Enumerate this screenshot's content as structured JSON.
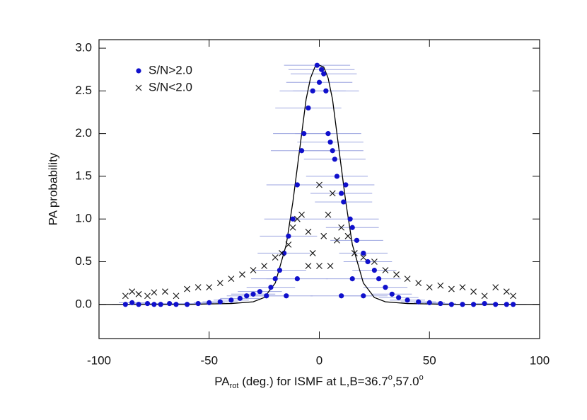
{
  "chart_data": {
    "type": "scatter",
    "y_label": "PA probability",
    "x_label_parts": [
      "PA",
      "rot",
      " (deg.) for ISMF at L,B=36.7",
      "o",
      ",57.0",
      "o"
    ],
    "xlim": [
      -100,
      100
    ],
    "ylim": [
      -0.4,
      3.1
    ],
    "xticks": [
      -100,
      -50,
      0,
      50,
      100
    ],
    "yticks": [
      {
        "value": 0,
        "label": "0.0"
      },
      {
        "value": 0.5,
        "label": "0.5"
      },
      {
        "value": 1,
        "label": "1.0"
      },
      {
        "value": 1.5,
        "label": "1.5"
      },
      {
        "value": 2,
        "label": "2.0"
      },
      {
        "value": 2.5,
        "label": "2.5"
      },
      {
        "value": 3,
        "label": "3.0"
      }
    ],
    "legend": "upper left",
    "series": [
      {
        "name": "S/N>2.0",
        "color": "#1010cc",
        "marker": "circle",
        "errcolor": "#9da6e0",
        "x": [
          -88,
          -85,
          -82,
          -78,
          -75,
          -72,
          -68,
          -65,
          -60,
          -55,
          -50,
          -45,
          -40,
          -36,
          -33,
          -30,
          -27,
          -24,
          -22,
          -20,
          -18,
          -16,
          -14,
          -12,
          -10,
          -8,
          -7,
          -5,
          -3,
          -1,
          0,
          1,
          2,
          3,
          4,
          5,
          6,
          7,
          8,
          10,
          11,
          12,
          14,
          15,
          17,
          20,
          22,
          25,
          27,
          30,
          33,
          36,
          40,
          45,
          50,
          55,
          60,
          65,
          70,
          75,
          80,
          85,
          88,
          -15,
          -10,
          10,
          20,
          15
        ],
        "values": [
          0,
          0.02,
          0,
          0.01,
          0,
          0,
          0.01,
          0,
          0,
          0.01,
          0.02,
          0.03,
          0.05,
          0.07,
          0.1,
          0.12,
          0.15,
          0.1,
          0.2,
          0.3,
          0.4,
          0.6,
          0.8,
          1.0,
          1.4,
          1.8,
          2.0,
          2.3,
          2.5,
          2.8,
          2.6,
          2.75,
          2.7,
          2.5,
          2.0,
          1.9,
          1.8,
          1.7,
          1.5,
          1.3,
          1.2,
          1.4,
          1.0,
          0.9,
          0.75,
          0.6,
          0.5,
          0.4,
          0.3,
          0.2,
          0.12,
          0.08,
          0.05,
          0.03,
          0.02,
          0.01,
          0,
          0,
          0,
          0.01,
          0,
          0,
          0,
          0.1,
          0.3,
          0.1,
          0.1,
          0.3
        ],
        "xerr": [
          6,
          6,
          6,
          6,
          6,
          6,
          6,
          6,
          7,
          7,
          7,
          8,
          8,
          9,
          9,
          10,
          10,
          10,
          11,
          11,
          12,
          12,
          13,
          13,
          14,
          14,
          14,
          15,
          15,
          15,
          15,
          15,
          15,
          15,
          15,
          15,
          14,
          14,
          14,
          14,
          13,
          13,
          13,
          12,
          12,
          11,
          11,
          10,
          10,
          10,
          9,
          9,
          8,
          8,
          7,
          7,
          7,
          6,
          6,
          6,
          6,
          6,
          6,
          12,
          14,
          14,
          11,
          12
        ]
      },
      {
        "name": "S/N<2.0",
        "color": "#111111",
        "marker": "x",
        "x": [
          -88,
          -85,
          -82,
          -78,
          -75,
          -70,
          -65,
          -60,
          -55,
          -50,
          -45,
          -40,
          -35,
          -30,
          -25,
          -20,
          -17,
          -14,
          -12,
          -10,
          -8,
          -5,
          -3,
          0,
          2,
          4,
          6,
          8,
          10,
          13,
          16,
          20,
          25,
          30,
          35,
          40,
          45,
          50,
          55,
          60,
          65,
          70,
          75,
          80,
          85,
          88,
          -5,
          5,
          0
        ],
        "values": [
          0.1,
          0.15,
          0.12,
          0.1,
          0.14,
          0.15,
          0.1,
          0.18,
          0.2,
          0.2,
          0.25,
          0.3,
          0.35,
          0.4,
          0.45,
          0.55,
          0.6,
          0.7,
          0.9,
          1.0,
          1.05,
          0.85,
          0.6,
          0.45,
          0.8,
          1.05,
          1.3,
          0.75,
          0.9,
          0.8,
          0.6,
          0.55,
          0.5,
          0.4,
          0.35,
          0.3,
          0.25,
          0.2,
          0.22,
          0.18,
          0.2,
          0.15,
          0.1,
          0.2,
          0.15,
          0.1,
          0.45,
          0.45,
          1.4
        ]
      }
    ],
    "curve": {
      "color": "#000000",
      "x": [
        -100,
        -90,
        -60,
        -40,
        -30,
        -25,
        -20,
        -15,
        -12,
        -10,
        -8,
        -6,
        -4,
        -2,
        0,
        2,
        4,
        6,
        8,
        10,
        12,
        15,
        20,
        25,
        30,
        40,
        60,
        90,
        100
      ],
      "values": [
        0,
        0,
        0,
        0.01,
        0.03,
        0.08,
        0.25,
        0.7,
        1.2,
        1.6,
        2.0,
        2.4,
        2.65,
        2.78,
        2.8,
        2.78,
        2.65,
        2.4,
        2.0,
        1.6,
        1.2,
        0.7,
        0.25,
        0.08,
        0.03,
        0.01,
        0,
        0,
        0
      ]
    }
  }
}
